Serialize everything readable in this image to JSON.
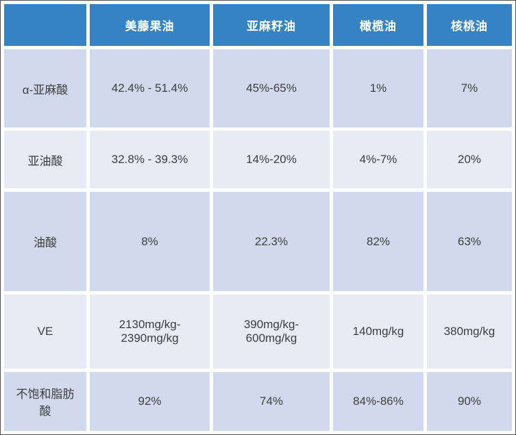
{
  "colors": {
    "header_bg": "#3583c4",
    "header_text": "#ffffff",
    "row_dark_bg": "#d1daec",
    "row_light_bg": "#e9ebf4",
    "body_text": "#3d3d3d",
    "separator": "#ffffff",
    "outer_border": "#4d4d4d"
  },
  "table": {
    "columns": [
      "",
      "美藤果油",
      "亚麻籽油",
      "橄榄油",
      "核桃油"
    ],
    "rows": [
      {
        "label": "α-亚麻酸",
        "values": [
          "42.4% - 51.4%",
          "45%-65%",
          "1%",
          "7%"
        ]
      },
      {
        "label": "亚油酸",
        "values": [
          "32.8% - 39.3%",
          "14%-20%",
          "4%-7%",
          "20%"
        ]
      },
      {
        "label": "油酸",
        "values": [
          "8%",
          "22.3%",
          "82%",
          "63%"
        ]
      },
      {
        "label": "VE",
        "values": [
          "2130mg/kg-\n2390mg/kg",
          "390mg/kg-\n600mg/kg",
          "140mg/kg",
          "380mg/kg"
        ]
      },
      {
        "label": "不饱和脂肪\n酸",
        "values": [
          "92%",
          "74%",
          "84%-86%",
          "90%"
        ]
      }
    ]
  },
  "chart_data": {
    "type": "table",
    "title": "",
    "categories": [
      "美藤果油",
      "亚麻籽油",
      "橄榄油",
      "核桃油"
    ],
    "series": [
      {
        "name": "α-亚麻酸",
        "values": [
          "42.4%-51.4%",
          "45%-65%",
          "1%",
          "7%"
        ]
      },
      {
        "name": "亚油酸",
        "values": [
          "32.8%-39.3%",
          "14%-20%",
          "4%-7%",
          "20%"
        ]
      },
      {
        "name": "油酸",
        "values": [
          "8%",
          "22.3%",
          "82%",
          "63%"
        ]
      },
      {
        "name": "VE",
        "values": [
          "2130mg/kg-2390mg/kg",
          "390mg/kg-600mg/kg",
          "140mg/kg",
          "380mg/kg"
        ]
      },
      {
        "name": "不饱和脂肪酸",
        "values": [
          "92%",
          "74%",
          "84%-86%",
          "90%"
        ]
      }
    ]
  }
}
